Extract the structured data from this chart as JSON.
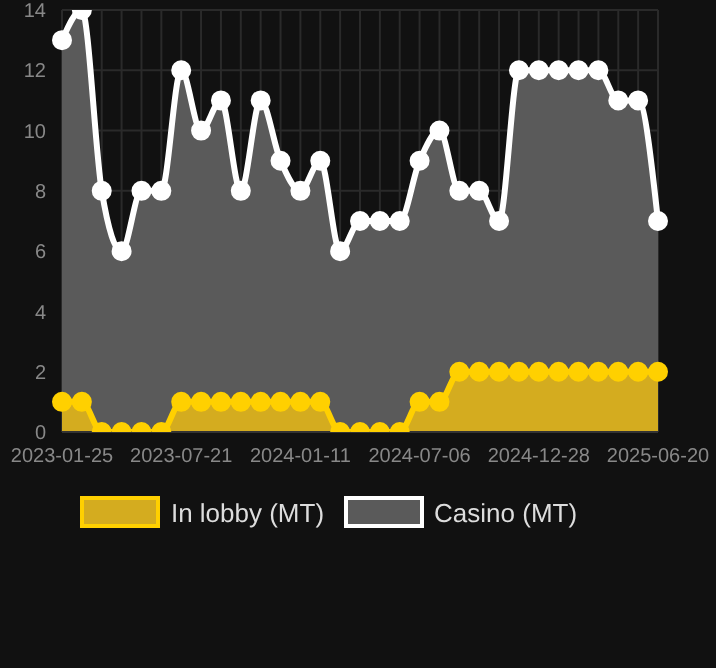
{
  "chart_data": {
    "type": "area",
    "categories": [
      "2023-01-25",
      null,
      null,
      null,
      null,
      null,
      "2023-07-21",
      null,
      null,
      null,
      null,
      null,
      "2024-01-11",
      null,
      null,
      null,
      null,
      null,
      "2024-07-06",
      null,
      null,
      null,
      null,
      null,
      "2024-12-28",
      null,
      null,
      null,
      null,
      null,
      "2025-06-20"
    ],
    "series": [
      {
        "name": "In lobby (MT)",
        "color": "#ffd000",
        "values": [
          1,
          1,
          0,
          0,
          0,
          0,
          1,
          1,
          1,
          1,
          1,
          1,
          1,
          1,
          0,
          0,
          0,
          0,
          1,
          1,
          2,
          2,
          2,
          2,
          2,
          2,
          2,
          2,
          2,
          2,
          2
        ]
      },
      {
        "name": "Casino (MT)",
        "color": "#ffffff",
        "values": [
          13,
          14,
          8,
          6,
          8,
          8,
          12,
          10,
          11,
          8,
          11,
          9,
          8,
          9,
          6,
          7,
          7,
          7,
          9,
          10,
          8,
          8,
          7,
          12,
          12,
          12,
          12,
          12,
          11,
          11,
          7
        ]
      }
    ],
    "ylim": [
      0,
      14
    ],
    "yticks": [
      0,
      2,
      4,
      6,
      8,
      10,
      12,
      14
    ],
    "grid": true,
    "legend": "bottom",
    "marker": "circle",
    "line_style": "solid"
  }
}
